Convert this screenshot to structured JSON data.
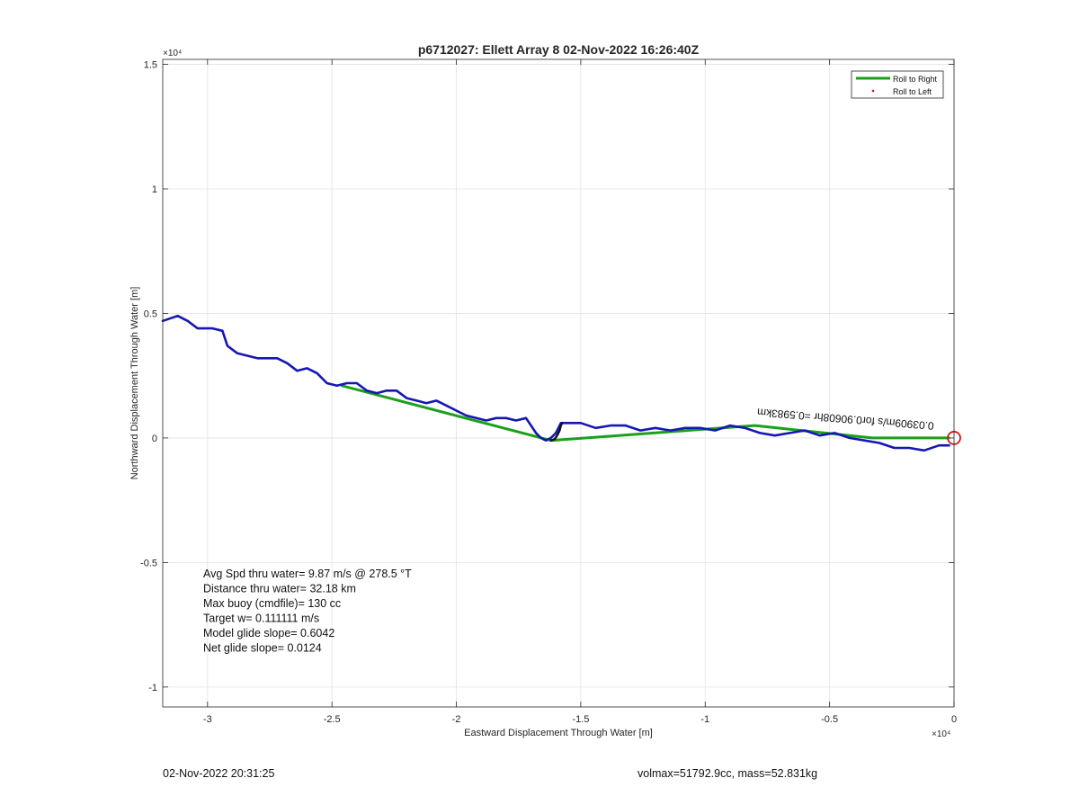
{
  "chart_data": {
    "type": "line",
    "title": "p6712027: Ellett Array 8 02-Nov-2022 16:26:40Z",
    "xlabel": "Eastward Displacement Through Water [m]",
    "ylabel": "Northward Displacement Through Water [m]",
    "x_exponent_label": "×10⁴",
    "y_exponent_label": "×10⁴",
    "xlim": [
      -3.18,
      0
    ],
    "ylim": [
      -1.08,
      1.52
    ],
    "x_scale": 10000,
    "y_scale": 10000,
    "grid": true,
    "legend_position": "top-right",
    "x_ticks": [
      -3,
      -2.5,
      -2,
      -1.5,
      -1,
      -0.5,
      0
    ],
    "x_tick_labels": [
      "-3",
      "-2.5",
      "-2",
      "-1.5",
      "-1",
      "-0.5",
      "0"
    ],
    "y_ticks": [
      -1,
      -0.5,
      0,
      0.5,
      1,
      1.5
    ],
    "y_tick_labels": [
      "-1",
      "-0.5",
      "0",
      "0.5",
      "1",
      "1.5"
    ],
    "series": [
      {
        "name": "Roll to Right",
        "color": "#1aa01a",
        "x": [
          -2.46,
          -1.62,
          -0.8,
          -0.33,
          -0.02
        ],
        "y": [
          0.21,
          -0.01,
          0.05,
          0.0,
          0.0
        ]
      },
      {
        "name": "Roll to Left",
        "color": "#ff0000",
        "x": [],
        "y": []
      },
      {
        "name": "",
        "color": "#1616b4",
        "x": [
          -3.18,
          -3.12,
          -3.08,
          -3.04,
          -2.98,
          -2.94,
          -2.92,
          -2.88,
          -2.8,
          -2.72,
          -2.68,
          -2.64,
          -2.6,
          -2.56,
          -2.52,
          -2.48,
          -2.44,
          -2.4,
          -2.36,
          -2.32,
          -2.28,
          -2.24,
          -2.2,
          -2.16,
          -2.12,
          -2.08,
          -2.04,
          -2.0,
          -1.96,
          -1.92,
          -1.88,
          -1.84,
          -1.8,
          -1.76,
          -1.72,
          -1.68,
          -1.66,
          -1.64,
          -1.62,
          -1.6,
          -1.58,
          -1.56,
          -1.5,
          -1.44,
          -1.38,
          -1.32,
          -1.26,
          -1.2,
          -1.14,
          -1.08,
          -1.02,
          -0.96,
          -0.9,
          -0.84,
          -0.78,
          -0.72,
          -0.66,
          -0.6,
          -0.54,
          -0.48,
          -0.42,
          -0.36,
          -0.3,
          -0.24,
          -0.18,
          -0.12,
          -0.06,
          -0.02
        ],
        "y": [
          0.47,
          0.49,
          0.47,
          0.44,
          0.44,
          0.43,
          0.37,
          0.34,
          0.32,
          0.32,
          0.3,
          0.27,
          0.28,
          0.26,
          0.22,
          0.21,
          0.22,
          0.22,
          0.19,
          0.18,
          0.19,
          0.19,
          0.16,
          0.15,
          0.14,
          0.15,
          0.13,
          0.11,
          0.09,
          0.08,
          0.07,
          0.08,
          0.08,
          0.07,
          0.08,
          0.02,
          0.0,
          -0.01,
          0.0,
          0.02,
          0.06,
          0.06,
          0.06,
          0.04,
          0.05,
          0.05,
          0.03,
          0.04,
          0.03,
          0.04,
          0.04,
          0.03,
          0.05,
          0.04,
          0.02,
          0.01,
          0.02,
          0.03,
          0.01,
          0.02,
          0.0,
          -0.01,
          -0.02,
          -0.04,
          -0.04,
          -0.05,
          -0.03,
          -0.03
        ]
      },
      {
        "name": "",
        "color": "#111111",
        "x": [
          -1.62,
          -1.605,
          -1.595,
          -1.585,
          -1.58,
          -1.575
        ],
        "y": [
          -0.01,
          -0.005,
          0.01,
          0.03,
          0.05,
          0.06
        ]
      }
    ],
    "marker_circle": {
      "x": 0.0,
      "y": 0.0,
      "color": "#c81e1e"
    },
    "annotation_text": "0.03909m/s for0.906​08hr =0.5983km",
    "annotation_x": -0.79,
    "annotation_y": 0.118,
    "stats": [
      "Avg Spd thru water=  9.87 m/s @ 278.5 °T",
      "Distance thru water= 32.18 km",
      "Max buoy (cmdfile)= 130 cc",
      "Target w= 0.111111 m/s",
      "Model glide slope= 0.6042",
      "Net glide slope= 0.0124"
    ]
  },
  "footer": {
    "left": "02-Nov-2022 20:31:25",
    "right": "volmax=51792.9cc, mass=52.831kg"
  }
}
